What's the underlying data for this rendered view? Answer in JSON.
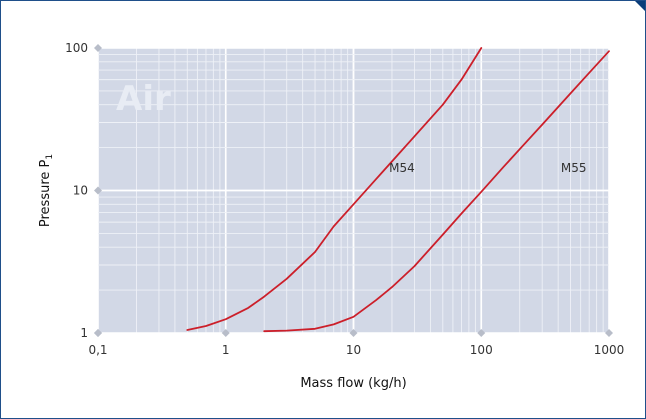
{
  "colors": {
    "plot_background": "#d2d8e6",
    "grid_major": "#ffffff",
    "grid_minor": "#eef1f7",
    "curve": "#cc1f2a",
    "frame": "#1f4f8a",
    "tick_marker": "#b8bdc9"
  },
  "chart_data": {
    "type": "line",
    "title": "",
    "watermark": "Air",
    "xlabel": "Mass flow (kg/h)",
    "ylabel_main": "Pressure P",
    "ylabel_sub": "1",
    "xscale": "log",
    "yscale": "log",
    "xlim": [
      0.1,
      1000
    ],
    "ylim": [
      1,
      100
    ],
    "grid": true,
    "x_ticks": [
      0.1,
      1,
      10,
      100,
      1000
    ],
    "x_tick_labels": [
      "0,1",
      "1",
      "10",
      "100",
      "1000"
    ],
    "y_ticks": [
      1,
      10,
      100
    ],
    "y_tick_labels": [
      "1",
      "10",
      "100"
    ],
    "series": [
      {
        "name": "M54",
        "x": [
          0.5,
          0.7,
          1.0,
          1.5,
          2.0,
          3.0,
          5.0,
          7.0,
          10,
          15,
          20,
          30,
          50,
          70,
          100
        ],
        "y": [
          1.05,
          1.12,
          1.25,
          1.5,
          1.8,
          2.4,
          3.7,
          5.6,
          8.0,
          12,
          16,
          24,
          40,
          60,
          100
        ]
      },
      {
        "name": "M55",
        "x": [
          2,
          3,
          5,
          7,
          10,
          15,
          20,
          30,
          50,
          70,
          100,
          150,
          200,
          300,
          500,
          700,
          1000
        ],
        "y": [
          1.03,
          1.04,
          1.07,
          1.15,
          1.3,
          1.7,
          2.1,
          2.95,
          4.9,
          6.9,
          9.8,
          14.7,
          19.5,
          29,
          48,
          67,
          95
        ]
      }
    ]
  }
}
